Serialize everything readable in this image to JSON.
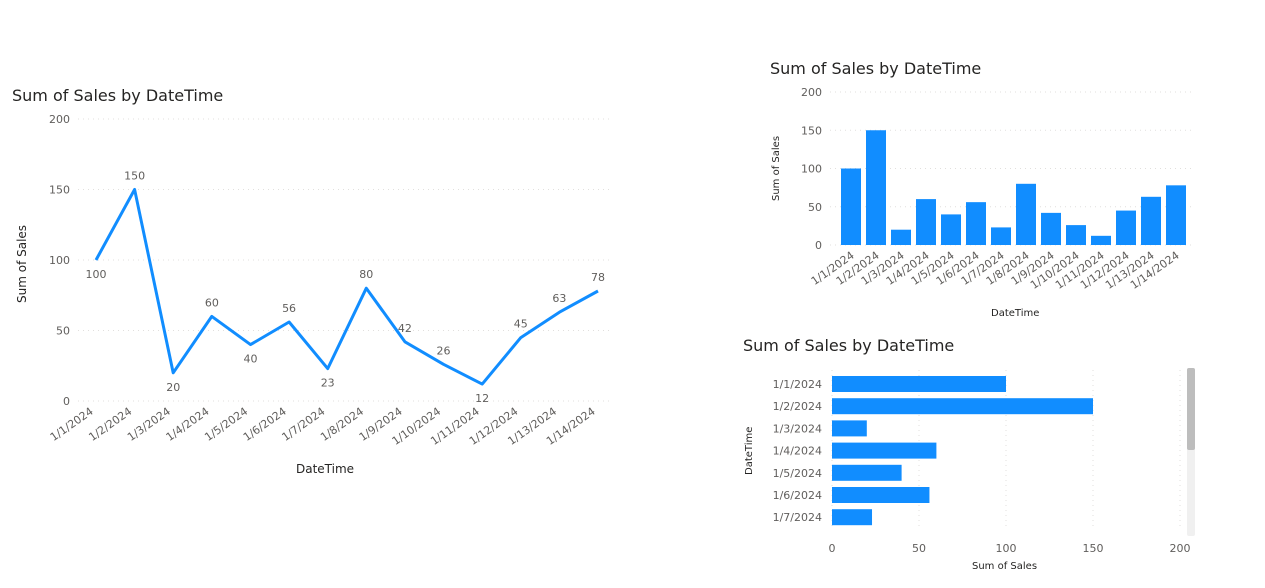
{
  "chart_data": [
    {
      "type": "line",
      "title": "Sum of Sales by DateTime",
      "xlabel": "DateTime",
      "ylabel": "Sum of Sales",
      "ylim": [
        0,
        200
      ],
      "yticks": [
        "0",
        "50",
        "100",
        "150",
        "200"
      ],
      "categories": [
        "1/1/2024",
        "1/2/2024",
        "1/3/2024",
        "1/4/2024",
        "1/5/2024",
        "1/6/2024",
        "1/7/2024",
        "1/8/2024",
        "1/9/2024",
        "1/10/2024",
        "1/11/2024",
        "1/12/2024",
        "1/13/2024",
        "1/14/2024"
      ],
      "values": [
        100,
        150,
        20,
        60,
        40,
        56,
        23,
        80,
        42,
        26,
        12,
        45,
        63,
        78
      ],
      "color": "#118dff",
      "data_labels": true,
      "grid": true
    },
    {
      "type": "bar",
      "title": "Sum of Sales by DateTime",
      "xlabel": "DateTime",
      "ylabel": "Sum of Sales",
      "ylim": [
        0,
        200
      ],
      "yticks": [
        "0",
        "50",
        "100",
        "150",
        "200"
      ],
      "categories": [
        "1/1/2024",
        "1/2/2024",
        "1/3/2024",
        "1/4/2024",
        "1/5/2024",
        "1/6/2024",
        "1/7/2024",
        "1/8/2024",
        "1/9/2024",
        "1/10/2024",
        "1/11/2024",
        "1/12/2024",
        "1/13/2024",
        "1/14/2024"
      ],
      "values": [
        100,
        150,
        20,
        60,
        40,
        56,
        23,
        80,
        42,
        26,
        12,
        45,
        63,
        78
      ],
      "color": "#118dff",
      "grid": true
    },
    {
      "type": "bar",
      "orientation": "horizontal",
      "title": "Sum of Sales by DateTime",
      "xlabel": "Sum of Sales",
      "ylabel": "DateTime",
      "xlim": [
        0,
        200
      ],
      "xticks": [
        "0",
        "50",
        "100",
        "150",
        "200"
      ],
      "categories": [
        "1/1/2024",
        "1/2/2024",
        "1/3/2024",
        "1/4/2024",
        "1/5/2024",
        "1/6/2024",
        "1/7/2024"
      ],
      "values": [
        100,
        150,
        20,
        60,
        40,
        56,
        23
      ],
      "color": "#118dff",
      "grid": true,
      "scrollbar": true
    }
  ]
}
